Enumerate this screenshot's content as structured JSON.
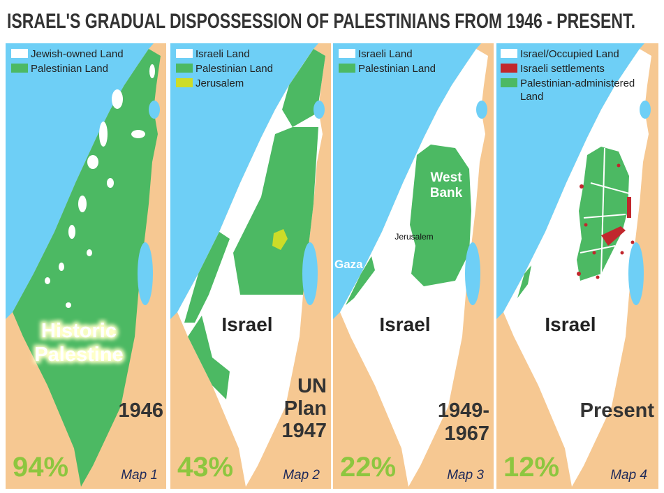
{
  "header": {
    "title": "ISRAEL'S GRADUAL DISPOSSESSION OF PALESTINIANS FROM 1946 - PRESENT."
  },
  "maps": [
    {
      "legend": [
        "Jewish-owned Land",
        "Palestinian Land"
      ],
      "name_lines": [
        "Historic",
        "Palestine"
      ],
      "year_lines": [
        "1946"
      ],
      "percent": "94%",
      "map_label": "Map 1"
    },
    {
      "legend": [
        "Israeli Land",
        "Palestinian Land",
        "Jerusalem"
      ],
      "name_lines": [
        "Israel"
      ],
      "year_lines": [
        "UN",
        "Plan",
        "1947"
      ],
      "percent": "43%",
      "map_label": "Map 2"
    },
    {
      "legend": [
        "Israeli Land",
        "Palestinian Land"
      ],
      "name_lines": [
        "Israel"
      ],
      "year_lines": [
        "1949-",
        "1967"
      ],
      "percent": "22%",
      "map_label": "Map 3",
      "places": {
        "west_bank": [
          "West",
          "Bank"
        ],
        "jerusalem": "Jerusalem",
        "gaza": "Gaza"
      }
    },
    {
      "legend": [
        "Israel/Occupied Land",
        "Israeli settlements",
        "Palestinian-administered",
        "Land"
      ],
      "name_lines": [
        "Israel"
      ],
      "year_lines": [
        "Present"
      ],
      "percent": "12%",
      "map_label": "Map 4"
    }
  ]
}
